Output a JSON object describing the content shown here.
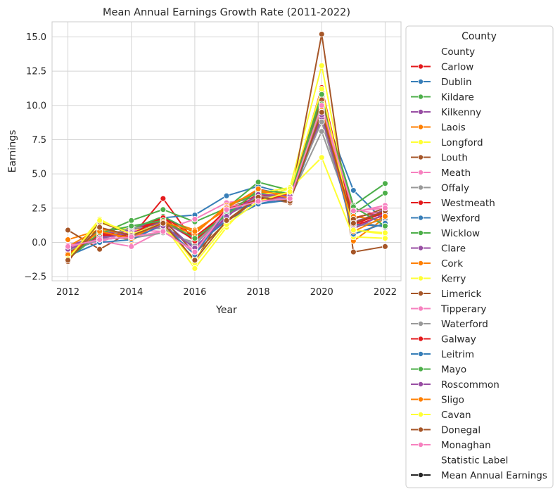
{
  "chart_data": {
    "type": "line",
    "title": "Mean Annual Earnings Growth Rate (2011-2022)",
    "xlabel": "Year",
    "ylabel": "Earnings",
    "x": [
      2012,
      2013,
      2014,
      2015,
      2016,
      2017,
      2018,
      2019,
      2020,
      2021,
      2022
    ],
    "xlim": [
      2011.5,
      2022.5
    ],
    "ylim": [
      -2.8,
      16.1
    ],
    "xticks": [
      2012,
      2014,
      2016,
      2018,
      2020,
      2022
    ],
    "xtick_labels": [
      "2012",
      "2014",
      "2016",
      "2018",
      "2020",
      "2022"
    ],
    "yticks": [
      -2.5,
      0.0,
      2.5,
      5.0,
      7.5,
      10.0,
      12.5,
      15.0
    ],
    "ytick_labels": [
      "−2.5",
      "0.0",
      "2.5",
      "5.0",
      "7.5",
      "10.0",
      "12.5",
      "15.0"
    ],
    "grid": true,
    "legend": {
      "title": "County",
      "placement": "outside-right",
      "entries": [
        {
          "label": "County",
          "kind": "header"
        },
        {
          "label": "Carlow",
          "color": "#e41a1c"
        },
        {
          "label": "Dublin",
          "color": "#377eb8"
        },
        {
          "label": "Kildare",
          "color": "#4daf4a"
        },
        {
          "label": "Kilkenny",
          "color": "#984ea3"
        },
        {
          "label": "Laois",
          "color": "#ff7f00"
        },
        {
          "label": "Longford",
          "color": "#ffff33"
        },
        {
          "label": "Louth",
          "color": "#a65628"
        },
        {
          "label": "Meath",
          "color": "#f781bf"
        },
        {
          "label": "Offaly",
          "color": "#999999"
        },
        {
          "label": "Westmeath",
          "color": "#e41a1c"
        },
        {
          "label": "Wexford",
          "color": "#377eb8"
        },
        {
          "label": "Wicklow",
          "color": "#4daf4a"
        },
        {
          "label": "Clare",
          "color": "#984ea3"
        },
        {
          "label": "Cork",
          "color": "#ff7f00"
        },
        {
          "label": "Kerry",
          "color": "#ffff33"
        },
        {
          "label": "Limerick",
          "color": "#a65628"
        },
        {
          "label": "Tipperary",
          "color": "#f781bf"
        },
        {
          "label": "Waterford",
          "color": "#999999"
        },
        {
          "label": "Galway",
          "color": "#e41a1c"
        },
        {
          "label": "Leitrim",
          "color": "#377eb8"
        },
        {
          "label": "Mayo",
          "color": "#4daf4a"
        },
        {
          "label": "Roscommon",
          "color": "#984ea3"
        },
        {
          "label": "Sligo",
          "color": "#ff7f00"
        },
        {
          "label": "Cavan",
          "color": "#ffff33"
        },
        {
          "label": "Donegal",
          "color": "#a65628"
        },
        {
          "label": "Monaghan",
          "color": "#f781bf"
        },
        {
          "label": "Statistic Label",
          "kind": "header"
        },
        {
          "label": "Mean Annual Earnings",
          "color": "#262626"
        }
      ]
    },
    "series": [
      {
        "name": "Carlow",
        "color": "#e41a1c",
        "values": [
          -0.5,
          0.8,
          0.4,
          3.2,
          0.0,
          2.3,
          3.5,
          3.3,
          9.2,
          1.8,
          2.3
        ]
      },
      {
        "name": "Dublin",
        "color": "#377eb8",
        "values": [
          -0.8,
          0.3,
          0.9,
          1.8,
          2.0,
          3.4,
          4.1,
          3.5,
          9.8,
          3.8,
          1.5
        ]
      },
      {
        "name": "Kildare",
        "color": "#4daf4a",
        "values": [
          -1.2,
          0.6,
          1.6,
          2.4,
          1.5,
          2.5,
          4.4,
          3.8,
          10.5,
          2.7,
          4.3
        ]
      },
      {
        "name": "Kilkenny",
        "color": "#984ea3",
        "values": [
          -0.2,
          0.4,
          1.0,
          1.6,
          -0.5,
          1.8,
          3.9,
          3.4,
          9.6,
          1.5,
          2.2
        ]
      },
      {
        "name": "Laois",
        "color": "#ff7f00",
        "values": [
          0.2,
          0.9,
          0.1,
          1.7,
          0.9,
          2.4,
          3.0,
          3.6,
          11.0,
          0.1,
          1.8
        ]
      },
      {
        "name": "Longford",
        "color": "#ffff33",
        "values": [
          -1.1,
          1.7,
          0.5,
          1.3,
          -1.9,
          1.1,
          3.6,
          4.0,
          12.9,
          0.9,
          0.6
        ]
      },
      {
        "name": "Louth",
        "color": "#a65628",
        "values": [
          0.9,
          -0.5,
          0.8,
          1.6,
          -1.4,
          2.5,
          3.3,
          2.9,
          15.2,
          -0.7,
          -0.3
        ]
      },
      {
        "name": "Meath",
        "color": "#f781bf",
        "values": [
          -0.4,
          0.1,
          -0.3,
          0.9,
          1.7,
          2.9,
          3.2,
          3.3,
          10.0,
          2.2,
          2.7
        ]
      },
      {
        "name": "Offaly",
        "color": "#999999",
        "values": [
          -0.6,
          0.3,
          0.3,
          0.7,
          0.0,
          2.0,
          3.1,
          3.2,
          8.1,
          1.6,
          1.1
        ]
      },
      {
        "name": "Westmeath",
        "color": "#e41a1c",
        "values": [
          -0.9,
          0.6,
          0.7,
          1.9,
          0.4,
          2.2,
          3.4,
          3.4,
          9.4,
          1.2,
          2.0
        ]
      },
      {
        "name": "Wexford",
        "color": "#377eb8",
        "values": [
          -0.7,
          0.2,
          0.4,
          1.2,
          -0.3,
          1.6,
          2.8,
          3.1,
          9.0,
          1.3,
          1.2
        ]
      },
      {
        "name": "Wicklow",
        "color": "#4daf4a",
        "values": [
          -1.0,
          0.9,
          1.0,
          1.9,
          0.7,
          2.6,
          3.6,
          3.6,
          10.8,
          2.1,
          3.6
        ]
      },
      {
        "name": "Clare",
        "color": "#984ea3",
        "values": [
          -0.4,
          0.7,
          0.8,
          1.5,
          0.2,
          2.1,
          3.3,
          3.3,
          9.1,
          1.4,
          2.4
        ]
      },
      {
        "name": "Cork",
        "color": "#ff7f00",
        "values": [
          -0.3,
          1.0,
          0.5,
          1.4,
          0.6,
          2.7,
          3.7,
          3.5,
          10.2,
          1.9,
          1.6
        ]
      },
      {
        "name": "Kerry",
        "color": "#ffff33",
        "values": [
          -1.3,
          1.4,
          0.9,
          1.1,
          -1.2,
          1.5,
          3.4,
          3.9,
          6.2,
          0.4,
          0.3
        ]
      },
      {
        "name": "Limerick",
        "color": "#a65628",
        "values": [
          -1.4,
          1.5,
          0.6,
          1.7,
          -0.8,
          1.5,
          3.2,
          3.1,
          10.4,
          1.7,
          2.5
        ]
      },
      {
        "name": "Tipperary",
        "color": "#f781bf",
        "values": [
          -0.2,
          0.0,
          0.9,
          0.8,
          -0.6,
          2.6,
          3.0,
          3.2,
          9.7,
          2.4,
          2.0
        ]
      },
      {
        "name": "Waterford",
        "color": "#999999",
        "values": [
          -0.6,
          0.2,
          1.1,
          1.0,
          -0.2,
          2.2,
          3.3,
          3.4,
          8.8,
          1.1,
          1.7
        ]
      },
      {
        "name": "Galway",
        "color": "#e41a1c",
        "values": [
          -0.8,
          0.5,
          0.6,
          1.8,
          0.1,
          2.4,
          3.1,
          3.5,
          11.3,
          1.3,
          2.2
        ]
      },
      {
        "name": "Leitrim",
        "color": "#377eb8",
        "values": [
          -1.0,
          0.0,
          0.2,
          1.3,
          -0.9,
          2.3,
          2.8,
          3.3,
          9.5,
          0.6,
          1.4
        ]
      },
      {
        "name": "Mayo",
        "color": "#4daf4a",
        "values": [
          -1.2,
          0.7,
          1.2,
          1.6,
          0.3,
          2.0,
          3.8,
          3.6,
          10.1,
          2.6,
          1.2
        ]
      },
      {
        "name": "Roscommon",
        "color": "#984ea3",
        "values": [
          -0.5,
          0.3,
          0.7,
          1.2,
          -0.4,
          1.9,
          3.5,
          3.4,
          9.3,
          1.0,
          2.1
        ]
      },
      {
        "name": "Sligo",
        "color": "#ff7f00",
        "values": [
          -0.9,
          0.8,
          0.3,
          1.5,
          0.8,
          2.5,
          3.9,
          3.2,
          9.9,
          0.8,
          1.9
        ]
      },
      {
        "name": "Cavan",
        "color": "#ffff33",
        "values": [
          -1.2,
          1.6,
          0.6,
          1.4,
          -1.5,
          1.3,
          3.0,
          3.7,
          11.2,
          0.9,
          0.7
        ]
      },
      {
        "name": "Donegal",
        "color": "#a65628",
        "values": [
          -1.3,
          1.1,
          0.5,
          1.4,
          -1.3,
          1.6,
          3.3,
          3.0,
          9.5,
          1.4,
          2.3
        ]
      },
      {
        "name": "Monaghan",
        "color": "#f781bf",
        "values": [
          -0.3,
          0.2,
          0.4,
          0.8,
          -0.7,
          2.4,
          3.0,
          3.2,
          10.0,
          2.3,
          2.5
        ]
      }
    ]
  }
}
